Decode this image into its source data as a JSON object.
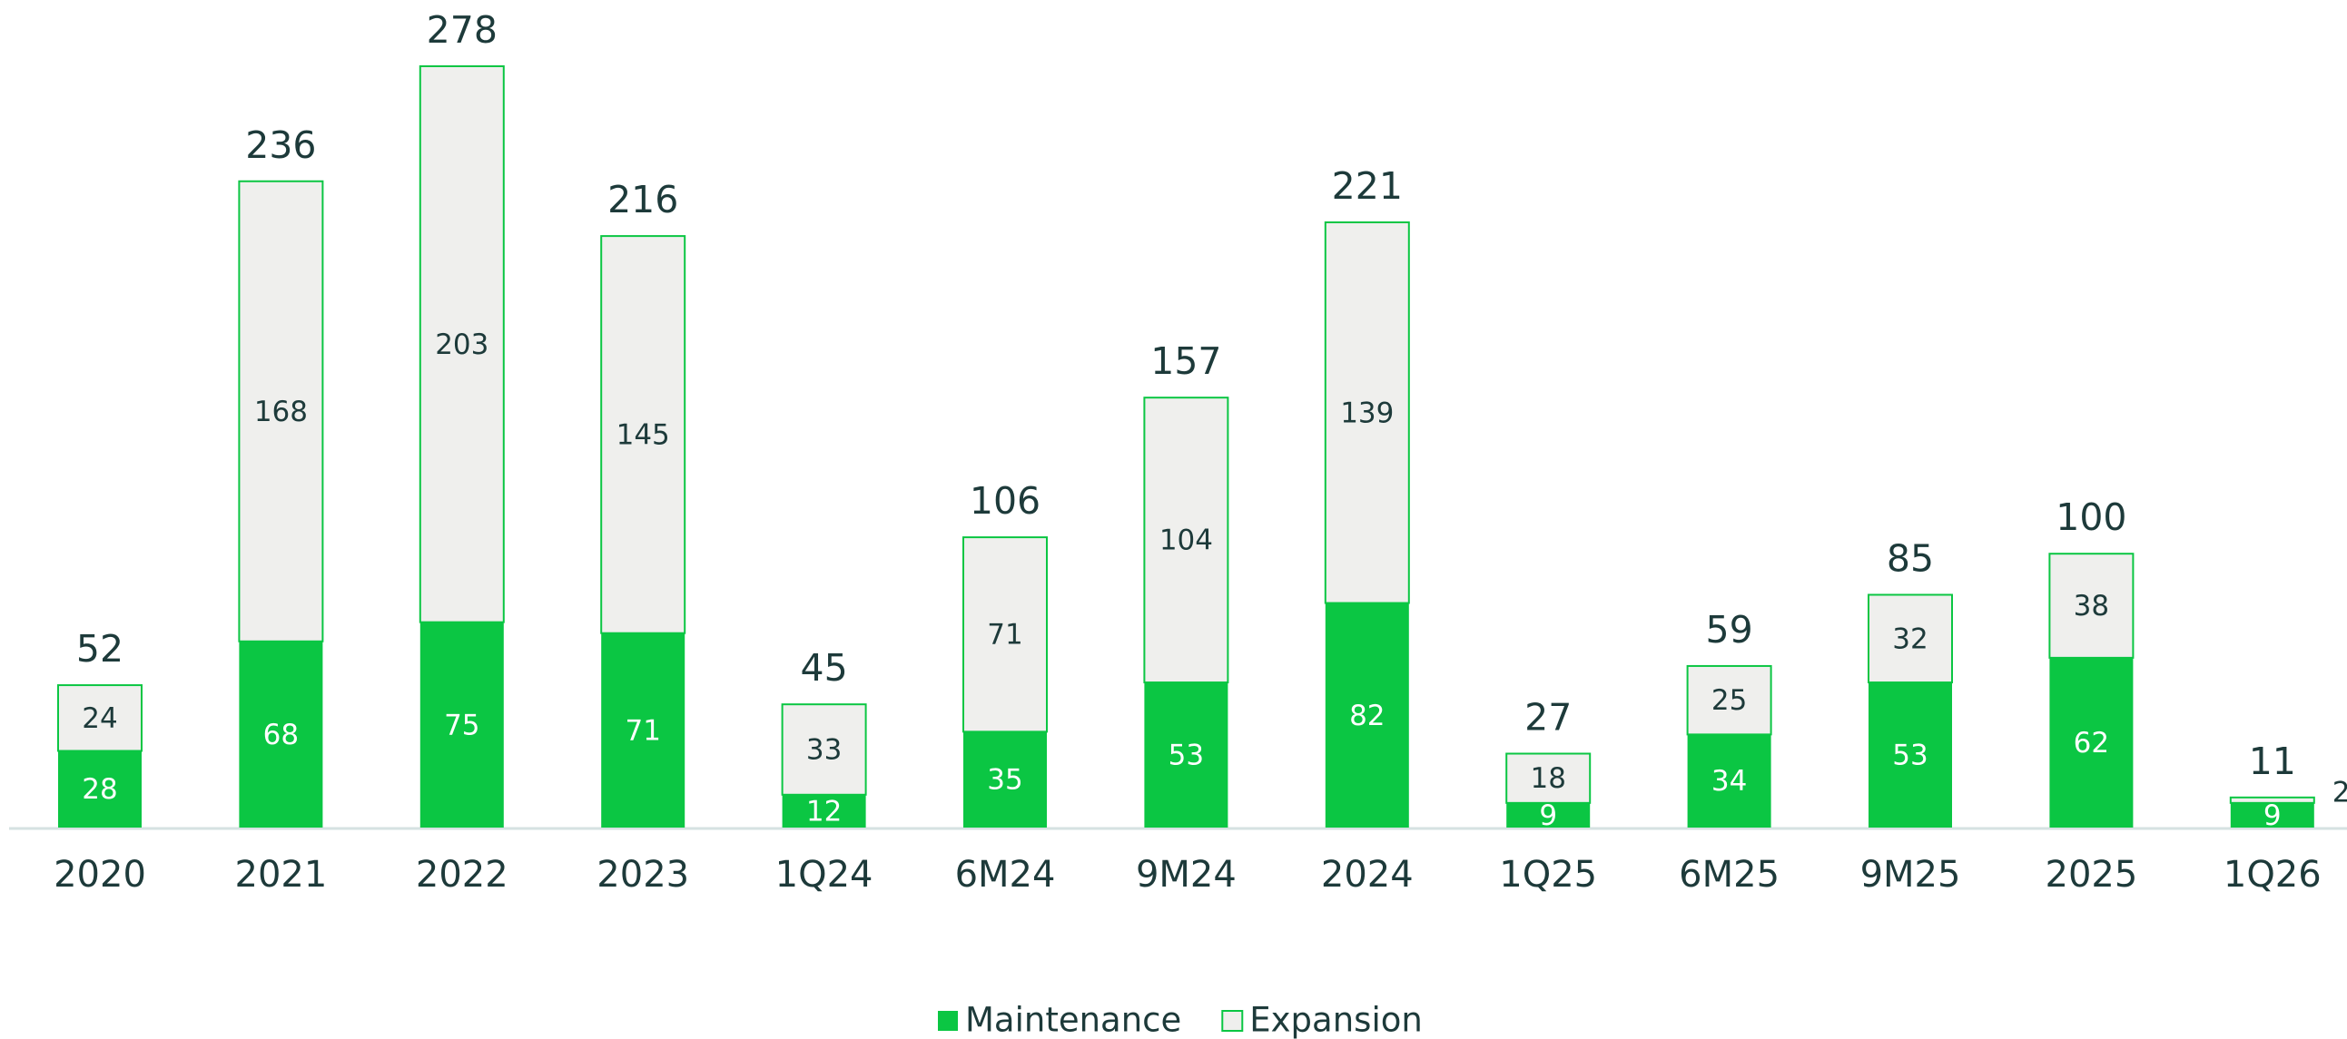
{
  "chart_data": {
    "type": "bar",
    "stacked": true,
    "categories": [
      "2020",
      "2021",
      "2022",
      "2023",
      "1Q24",
      "6M24",
      "9M24",
      "2024",
      "1Q25",
      "6M25",
      "9M25",
      "2025",
      "1Q26"
    ],
    "series": [
      {
        "name": "Maintenance",
        "color": "#0bc643",
        "values": [
          28,
          68,
          75,
          71,
          12,
          35,
          53,
          82,
          9,
          34,
          53,
          62,
          9
        ]
      },
      {
        "name": "Expansion",
        "color": "#efefed",
        "values": [
          24,
          168,
          203,
          145,
          33,
          71,
          104,
          139,
          18,
          25,
          32,
          38,
          2
        ]
      }
    ],
    "totals": [
      52,
      236,
      278,
      216,
      45,
      106,
      157,
      221,
      27,
      59,
      85,
      100,
      11
    ]
  }
}
